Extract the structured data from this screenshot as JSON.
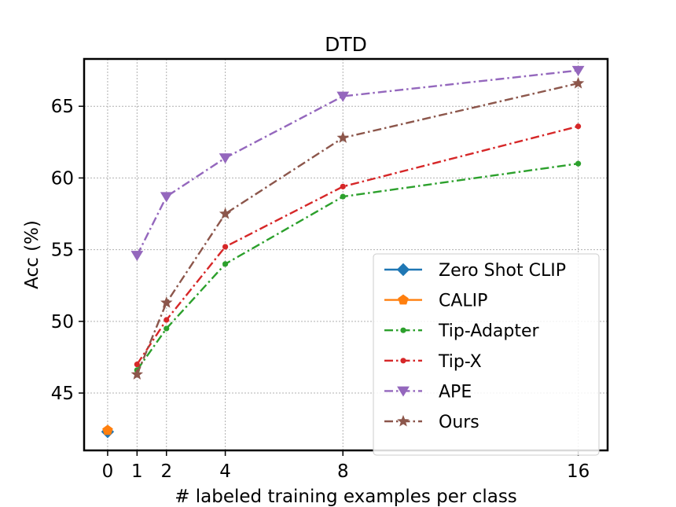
{
  "chart_data": {
    "type": "line",
    "title": "DTD",
    "xlabel": "# labeled training examples per class",
    "ylabel": "Acc (%)",
    "x_ticks": [
      0,
      1,
      2,
      4,
      8,
      16
    ],
    "y_ticks": [
      45,
      50,
      55,
      60,
      65
    ],
    "xlim": [
      -0.8,
      17.0
    ],
    "ylim": [
      41.0,
      68.3
    ],
    "grid": true,
    "legend_position": "lower-right",
    "series": [
      {
        "name": "Zero Shot CLIP",
        "color": "#1f77b4",
        "linestyle": "solid",
        "marker": "diamond",
        "x": [
          0
        ],
        "y": [
          42.3
        ]
      },
      {
        "name": "CALIP",
        "color": "#ff7f0e",
        "linestyle": "solid",
        "marker": "pentagon",
        "x": [
          0
        ],
        "y": [
          42.4
        ]
      },
      {
        "name": "Tip-Adapter",
        "color": "#2ca02c",
        "linestyle": "dashdot",
        "marker": "point",
        "x": [
          1,
          2,
          4,
          8,
          16
        ],
        "y": [
          46.6,
          49.5,
          54.0,
          58.7,
          61.0
        ]
      },
      {
        "name": "Tip-X",
        "color": "#d62728",
        "linestyle": "dashdot",
        "marker": "point",
        "x": [
          1,
          2,
          4,
          8,
          16
        ],
        "y": [
          47.0,
          50.1,
          55.2,
          59.4,
          63.6
        ]
      },
      {
        "name": "APE",
        "color": "#9467bd",
        "linestyle": "dashdot",
        "marker": "triangle-down",
        "x": [
          1,
          2,
          4,
          8,
          16
        ],
        "y": [
          54.6,
          58.7,
          61.4,
          65.7,
          67.5
        ]
      },
      {
        "name": "Ours",
        "color": "#8c564b",
        "linestyle": "dashdot",
        "marker": "star",
        "x": [
          1,
          2,
          4,
          8,
          16
        ],
        "y": [
          46.3,
          51.3,
          57.5,
          62.8,
          66.6
        ]
      }
    ]
  }
}
